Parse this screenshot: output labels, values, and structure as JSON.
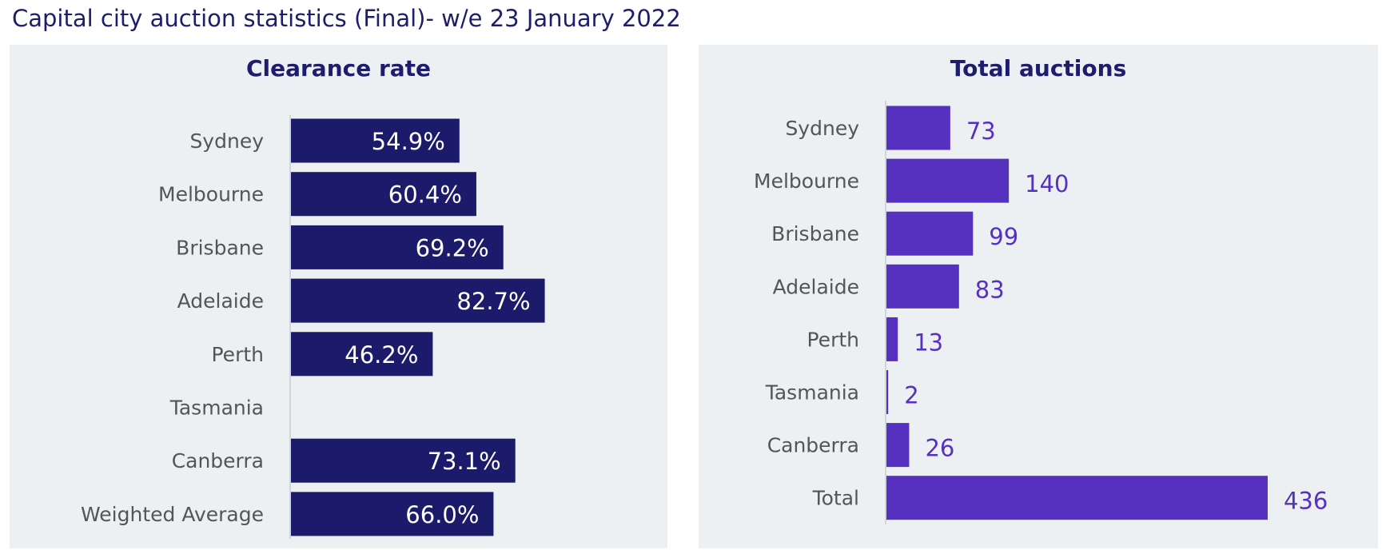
{
  "page_title": "Capital city auction statistics (Final)- w/e 23 January 2022",
  "colors": {
    "clearance_bar": "#1b1a6b",
    "auctions_bar": "#5631c0",
    "category_text": "#555555",
    "title_text": "#1d1d6b"
  },
  "chart_data": [
    {
      "type": "bar",
      "orientation": "horizontal",
      "title": "Clearance rate",
      "categories": [
        "Sydney",
        "Melbourne",
        "Brisbane",
        "Adelaide",
        "Perth",
        "Tasmania",
        "Canberra",
        "Weighted Average"
      ],
      "values": [
        54.9,
        60.4,
        69.2,
        82.7,
        46.2,
        null,
        73.1,
        66.0
      ],
      "data_labels": [
        "54.9%",
        "60.4%",
        "69.2%",
        "82.7%",
        "46.2%",
        "",
        "73.1%",
        "66.0%"
      ],
      "data_label_position": "inside-end",
      "unit": "%",
      "xlim": [
        0,
        100
      ],
      "grid": false,
      "legend": "none"
    },
    {
      "type": "bar",
      "orientation": "horizontal",
      "title": "Total auctions",
      "categories": [
        "Sydney",
        "Melbourne",
        "Brisbane",
        "Adelaide",
        "Perth",
        "Tasmania",
        "Canberra",
        "Total"
      ],
      "values": [
        73,
        140,
        99,
        83,
        13,
        2,
        26,
        436
      ],
      "data_labels": [
        "73",
        "140",
        "99",
        "83",
        "13",
        "2",
        "26",
        "436"
      ],
      "data_label_position": "outside-end",
      "xlim": [
        0,
        500
      ],
      "grid": false,
      "legend": "none"
    }
  ]
}
